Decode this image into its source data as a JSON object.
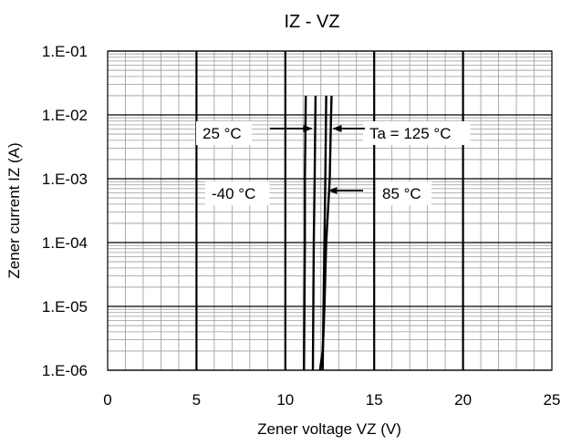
{
  "chart_data": {
    "type": "line",
    "title": "IZ - VZ",
    "xlabel": "Zener voltage VZ (V)",
    "ylabel": "Zener current IZ (A)",
    "x_scale": "linear",
    "y_scale": "log",
    "xlim": [
      0,
      25
    ],
    "ylim": [
      1e-06,
      0.1
    ],
    "x_ticks": [
      0,
      5,
      10,
      15,
      20,
      25
    ],
    "x_tick_labels": [
      "0",
      "5",
      "10",
      "15",
      "20",
      "25"
    ],
    "y_ticks": [
      1e-06,
      1e-05,
      0.0001,
      0.001,
      0.01,
      0.1
    ],
    "y_tick_labels": [
      "1.E-06",
      "1.E-05",
      "1.E-04",
      "1.E-03",
      "1.E-02",
      "1.E-01"
    ],
    "grid": true,
    "series": [
      {
        "name": "-40 °C",
        "x": [
          11.05,
          11.1,
          11.1,
          11.15
        ],
        "y": [
          1e-06,
          0.0001,
          0.001,
          0.02
        ]
      },
      {
        "name": "25 °C",
        "x": [
          11.55,
          11.6,
          11.65,
          11.7
        ],
        "y": [
          1e-06,
          0.0001,
          0.001,
          0.02
        ]
      },
      {
        "name": "85 °C",
        "x": [
          12.1,
          12.2,
          12.25,
          12.3
        ],
        "y": [
          1e-06,
          0.0001,
          0.001,
          0.02
        ]
      },
      {
        "name": "Ta = 125 °C",
        "x": [
          11.95,
          12.1,
          12.15,
          12.2,
          12.3,
          12.5,
          12.55,
          12.6
        ],
        "y": [
          1e-06,
          2e-06,
          4e-06,
          1e-05,
          0.0001,
          0.001,
          0.005,
          0.02
        ]
      }
    ],
    "annotations": [
      {
        "text": "25 °C",
        "arrow_to": "25 °C"
      },
      {
        "text": "Ta = 125 °C",
        "arrow_to": "Ta = 125 °C"
      },
      {
        "text": "-40 °C"
      },
      {
        "text": "85 °C",
        "arrow_to": "85 °C"
      }
    ]
  }
}
